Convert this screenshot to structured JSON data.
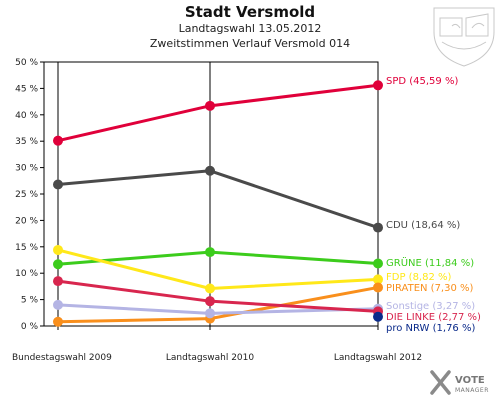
{
  "chart_data": {
    "type": "line",
    "title": "Stadt Versmold",
    "subtitle": "Landtagswahl 13.05.2012",
    "subtitle2": "Zweitstimmen Verlauf Versmold 014",
    "categories": [
      "Bundestagswahl 2009",
      "Landtagswahl 2010",
      "Landtagswahl 2012"
    ],
    "ylim": [
      0,
      50
    ],
    "yticks": [
      "0 %",
      "5 %",
      "10 %",
      "15 %",
      "20 %",
      "25 %",
      "30 %",
      "35 %",
      "40 %",
      "45 %",
      "50 %"
    ],
    "grid": false,
    "series": [
      {
        "name": "SPD (45,59 %)",
        "color": "#e0003a",
        "values": [
          35.1,
          41.7,
          45.59
        ]
      },
      {
        "name": "CDU (18,64 %)",
        "color": "#4a4a4a",
        "values": [
          26.8,
          29.4,
          18.64
        ]
      },
      {
        "name": "GRÜNE (11,84 %)",
        "color": "#3ccc1c",
        "values": [
          11.7,
          14.0,
          11.84
        ]
      },
      {
        "name": "FDP (8,82 %)",
        "color": "#ffe81a",
        "values": [
          14.4,
          7.1,
          8.82
        ]
      },
      {
        "name": "PIRATEN (7,30 %)",
        "color": "#f98f1c",
        "values": [
          0.8,
          1.4,
          7.3
        ]
      },
      {
        "name": "Sonstige (3,27 %)",
        "color": "#b4b4e4",
        "values": [
          4.0,
          2.4,
          3.27
        ]
      },
      {
        "name": "DIE LINKE (2,77 %)",
        "color": "#d8264e",
        "values": [
          8.5,
          4.7,
          2.77
        ]
      },
      {
        "name": "pro NRW (1,76 %)",
        "color": "#0a2a8a",
        "values": [
          null,
          null,
          1.76
        ]
      }
    ]
  },
  "branding": {
    "logo_main": "VOTE",
    "logo_sub": "MANAGER"
  }
}
